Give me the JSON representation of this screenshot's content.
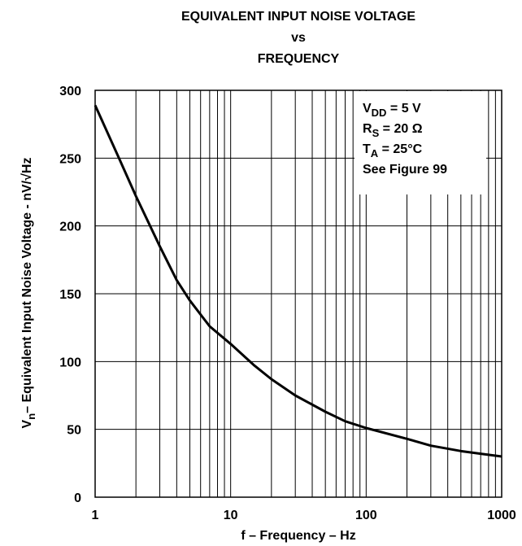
{
  "chart_data": {
    "type": "line",
    "title": [
      "EQUIVALENT INPUT NOISE VOLTAGE",
      "vs",
      "FREQUENCY"
    ],
    "x_label": "f – Frequency – Hz",
    "y_label": {
      "main": "V",
      "sub": "n",
      "rest": "– Equivalent Input Noise Voltage - nV/√Hz"
    },
    "annotations": [
      {
        "main": "V",
        "sub": "DD",
        "rest": " = 5 V"
      },
      {
        "main": "R",
        "sub": "S",
        "rest": " = 20 Ω"
      },
      {
        "main": "T",
        "sub": "A",
        "rest": " = 25°C"
      },
      {
        "main": "See Figure 99"
      }
    ],
    "x": [
      1,
      1.5,
      2,
      3,
      4,
      5,
      7,
      10,
      15,
      20,
      30,
      50,
      70,
      100,
      200,
      300,
      500,
      700,
      1000
    ],
    "values": [
      289,
      250,
      222,
      185,
      160,
      145,
      126,
      113,
      97,
      87,
      75,
      63,
      56,
      51,
      43,
      38,
      34,
      32,
      30
    ],
    "color": "#000000",
    "xlog": true,
    "xlim": [
      1,
      1000
    ],
    "xticks": [
      1,
      10,
      100,
      1000
    ],
    "x_minor_ticks": [
      2,
      3,
      4,
      5,
      6,
      7,
      8,
      9,
      20,
      30,
      40,
      50,
      60,
      70,
      80,
      90,
      200,
      300,
      400,
      500,
      600,
      700,
      800,
      900
    ],
    "ylim": [
      0,
      300
    ],
    "yticks": [
      0,
      50,
      100,
      150,
      200,
      250,
      300
    ],
    "grid": true
  }
}
